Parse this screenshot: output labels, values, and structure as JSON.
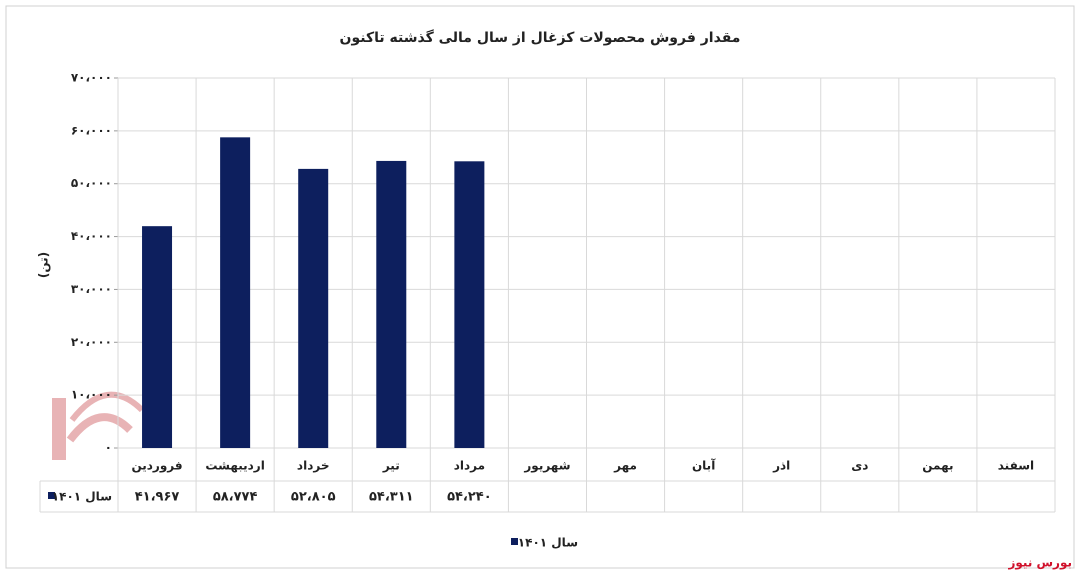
{
  "chart_data": {
    "type": "bar",
    "title": "مقدار فروش محصولات کزغال از سال مالی گذشته تاکنون",
    "y_label": "(تن)",
    "categories": [
      "فروردین",
      "اردیبهشت",
      "خرداد",
      "تیر",
      "مرداد",
      "شهریور",
      "مهر",
      "آبان",
      "اذر",
      "دی",
      "بهمن",
      "اسفند"
    ],
    "series": [
      {
        "name": "سال ۱۴۰۱",
        "color": "#0d1f5e",
        "values": [
          41967,
          58774,
          52805,
          54311,
          54240,
          null,
          null,
          null,
          null,
          null,
          null,
          null
        ],
        "value_labels": [
          "۴۱،۹۶۷",
          "۵۸،۷۷۴",
          "۵۲،۸۰۵",
          "۵۴،۳۱۱",
          "۵۴،۲۴۰",
          null,
          null,
          null,
          null,
          null,
          null,
          null
        ]
      }
    ],
    "ylim": [
      0,
      70000
    ],
    "yticks": [
      {
        "value": 0,
        "label": "۰"
      },
      {
        "value": 10000,
        "label": "۱۰،۰۰۰"
      },
      {
        "value": 20000,
        "label": "۲۰،۰۰۰"
      },
      {
        "value": 30000,
        "label": "۳۰،۰۰۰"
      },
      {
        "value": 40000,
        "label": "۴۰،۰۰۰"
      },
      {
        "value": 50000,
        "label": "۵۰،۰۰۰"
      },
      {
        "value": 60000,
        "label": "۶۰،۰۰۰"
      },
      {
        "value": 70000,
        "label": "۷۰،۰۰۰"
      }
    ],
    "grid": true,
    "legend": "bottom",
    "source": "بورس نیوز"
  }
}
